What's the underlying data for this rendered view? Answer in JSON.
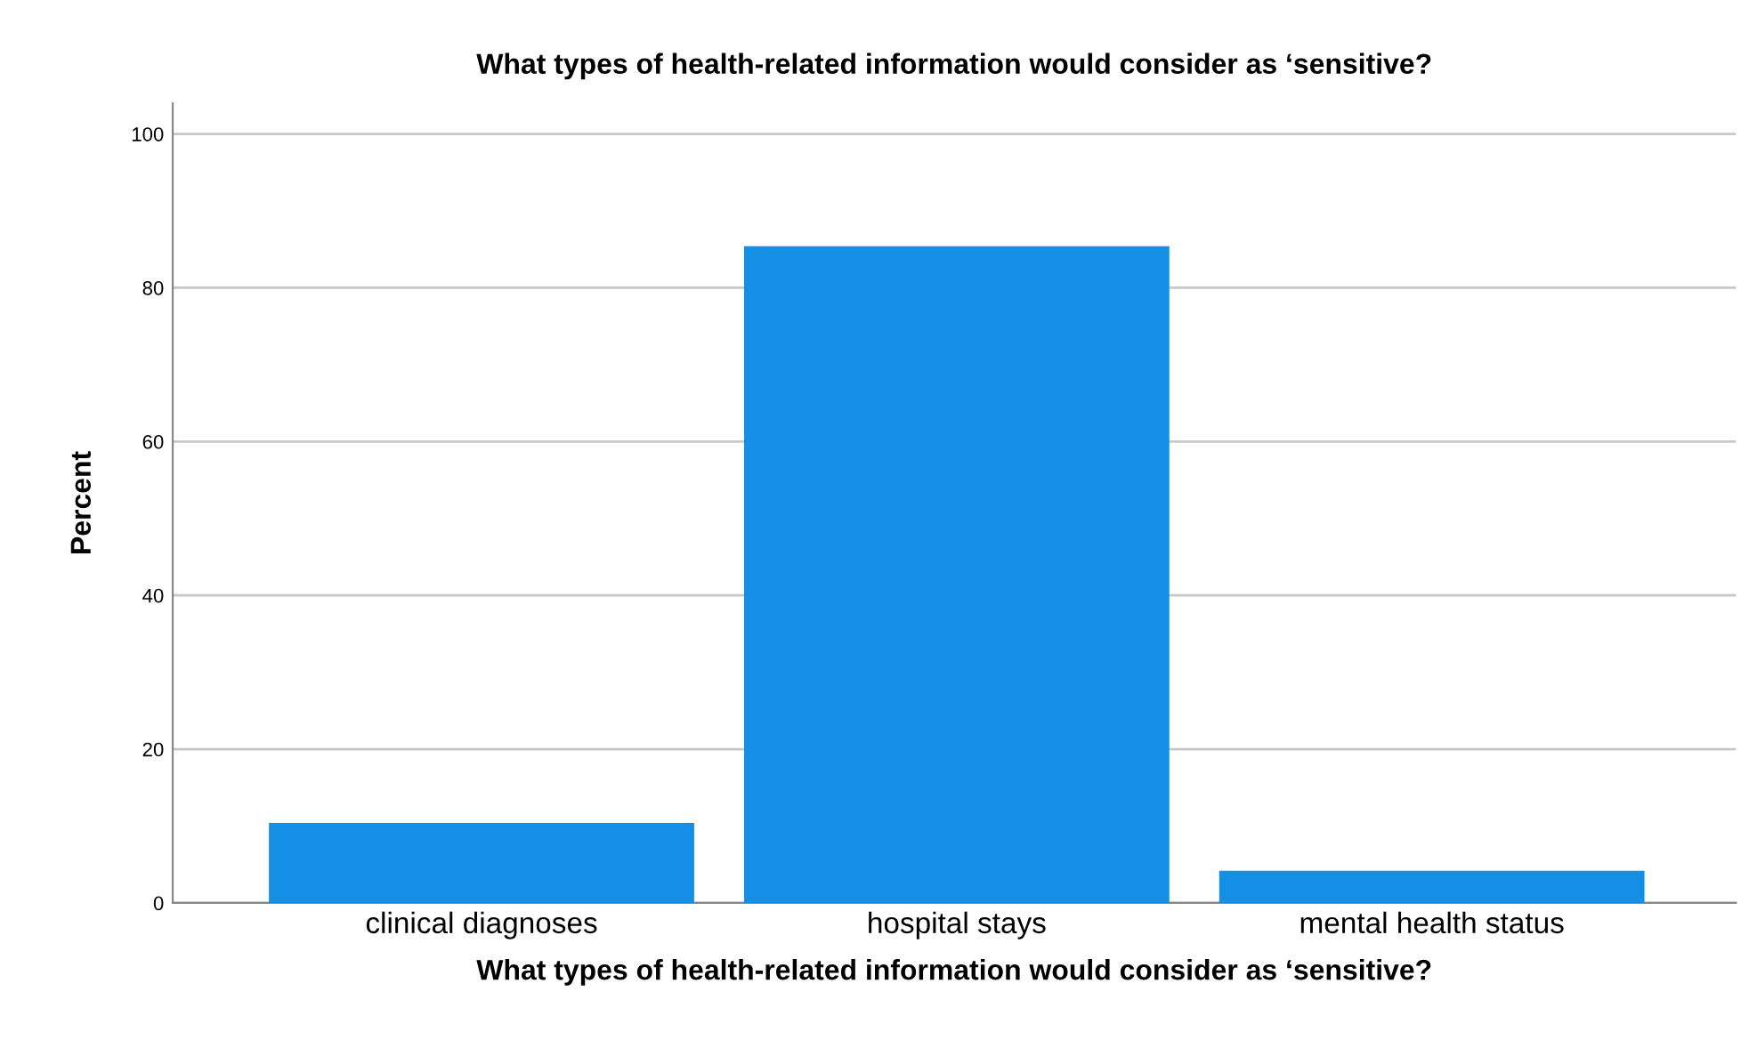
{
  "chart_data": {
    "type": "bar",
    "title": "What types of health-related information would consider as ‘sensitive?",
    "xlabel": "What types of health-related information would consider as ‘sensitive?",
    "ylabel": "Percent",
    "categories": [
      "clinical diagnoses",
      "hospital stays",
      "mental health status"
    ],
    "values": [
      10.4,
      85.4,
      4.2
    ],
    "color": "#1390e6",
    "ylim": [
      0,
      104
    ],
    "yticks": [
      0,
      20,
      40,
      60,
      80,
      100
    ],
    "grid": "y"
  }
}
